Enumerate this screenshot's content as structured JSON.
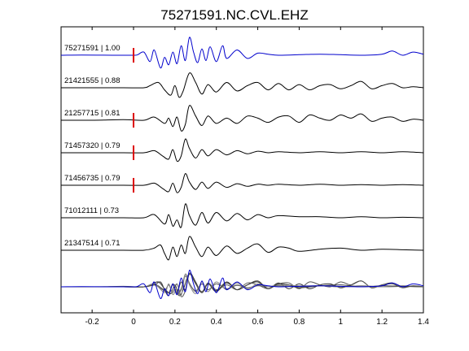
{
  "chart_data": {
    "type": "line",
    "title": "75271591.NC.CVL.EHZ",
    "xlabel": "",
    "ylabel": "",
    "xlim": [
      -0.35,
      1.4
    ],
    "xticks": [
      "-0.2",
      "0",
      "0.2",
      "0.4",
      "0.6",
      "0.8",
      "1",
      "1.2",
      "1.4"
    ],
    "grid": false,
    "trace_labels": [
      "75271591 | 1.00",
      "21421555 | 0.88",
      "21257715 | 0.81",
      "71457320 | 0.79",
      "71456735 | 0.79",
      "71012111 | 0.73",
      "21347514 | 0.71"
    ],
    "series": [
      {
        "id": "75271591",
        "corr": 1.0,
        "color": "#0000cc",
        "pick_time": 0.0,
        "x": [
          -0.35,
          -0.25,
          -0.1,
          0,
          0.02,
          0.05,
          0.08,
          0.1,
          0.13,
          0.15,
          0.17,
          0.19,
          0.21,
          0.23,
          0.25,
          0.27,
          0.29,
          0.31,
          0.33,
          0.35,
          0.37,
          0.4,
          0.43,
          0.45,
          0.5,
          0.55,
          0.6,
          0.65,
          0.7,
          0.8,
          0.9,
          1.0,
          1.1,
          1.2,
          1.25,
          1.3,
          1.35,
          1.4
        ],
        "y": [
          0,
          0.02,
          0,
          0,
          0.05,
          0.3,
          -0.6,
          0.5,
          -1.2,
          -0.2,
          -0.9,
          0.3,
          -0.8,
          0.9,
          -0.5,
          1.7,
          0.3,
          -0.7,
          0.6,
          -0.5,
          0.8,
          -0.6,
          0.9,
          -0.3,
          0.5,
          -0.3,
          0.2,
          0.1,
          0,
          0.05,
          0.1,
          0.05,
          0,
          0.1,
          0.4,
          0,
          0.3,
          0.1
        ]
      },
      {
        "id": "21421555",
        "corr": 0.88,
        "color": "#000000",
        "pick_time": null,
        "x": [
          -0.35,
          -0.2,
          -0.05,
          0.05,
          0.08,
          0.12,
          0.15,
          0.18,
          0.2,
          0.22,
          0.24,
          0.27,
          0.3,
          0.33,
          0.36,
          0.4,
          0.45,
          0.5,
          0.55,
          0.6,
          0.65,
          0.7,
          0.75,
          0.8,
          0.85,
          0.9,
          0.95,
          1.0,
          1.05,
          1.1,
          1.15,
          1.2,
          1.25,
          1.3,
          1.35,
          1.4
        ],
        "y": [
          0,
          0,
          0,
          0,
          0.2,
          0.5,
          -0.2,
          -0.7,
          0.2,
          -0.9,
          -0.3,
          1.4,
          0.5,
          -0.6,
          0.3,
          -0.4,
          0.5,
          -0.3,
          0.2,
          0.5,
          -0.2,
          0.4,
          -0.2,
          0.3,
          -0.2,
          0.2,
          0.3,
          -0.1,
          0.2,
          0.6,
          -0.1,
          0.2,
          0.4,
          0,
          0.1,
          0
        ]
      },
      {
        "id": "21257715",
        "corr": 0.81,
        "color": "#000000",
        "pick_time": 0.0,
        "x": [
          -0.35,
          -0.2,
          -0.05,
          0.05,
          0.1,
          0.15,
          0.17,
          0.19,
          0.21,
          0.23,
          0.25,
          0.27,
          0.3,
          0.33,
          0.36,
          0.4,
          0.45,
          0.5,
          0.55,
          0.6,
          0.65,
          0.7,
          0.75,
          0.8,
          0.85,
          0.9,
          0.95,
          1.0,
          1.05,
          1.1,
          1.15,
          1.2,
          1.25,
          1.3,
          1.35,
          1.4
        ],
        "y": [
          0,
          0,
          0.05,
          0,
          0.3,
          -0.3,
          0.2,
          -0.6,
          0.3,
          -1.0,
          -0.4,
          1.4,
          0.4,
          -0.5,
          0.4,
          -0.3,
          0.2,
          -0.3,
          0.4,
          0.2,
          -0.2,
          0.3,
          0.4,
          -0.2,
          0.5,
          0.2,
          0,
          0.5,
          0.2,
          0.6,
          -0.1,
          0.2,
          0.3,
          -0.1,
          0.1,
          0
        ]
      },
      {
        "id": "71457320",
        "corr": 0.79,
        "color": "#000000",
        "pick_time": 0.0,
        "x": [
          -0.35,
          -0.2,
          -0.05,
          0.05,
          0.1,
          0.14,
          0.17,
          0.19,
          0.21,
          0.23,
          0.25,
          0.27,
          0.3,
          0.33,
          0.36,
          0.4,
          0.45,
          0.5,
          0.55,
          0.6,
          0.65,
          0.7,
          0.8,
          0.9,
          1.0,
          1.1,
          1.2,
          1.3,
          1.4
        ],
        "y": [
          0,
          0,
          0,
          0,
          0.2,
          -0.3,
          -0.6,
          0.3,
          -0.8,
          -0.3,
          1.3,
          0.4,
          -0.5,
          0.3,
          -0.3,
          0.3,
          -0.2,
          0.2,
          -0.1,
          0.15,
          0,
          0.1,
          0,
          0.1,
          0,
          0.1,
          0,
          0.1,
          0
        ]
      },
      {
        "id": "71456735",
        "corr": 0.79,
        "color": "#000000",
        "pick_time": 0.0,
        "x": [
          -0.35,
          -0.2,
          -0.05,
          0.05,
          0.1,
          0.14,
          0.17,
          0.19,
          0.21,
          0.23,
          0.25,
          0.27,
          0.3,
          0.33,
          0.36,
          0.4,
          0.45,
          0.5,
          0.55,
          0.6,
          0.65,
          0.7,
          0.8,
          0.9,
          1.0,
          1.1,
          1.2,
          1.3,
          1.4
        ],
        "y": [
          0,
          0,
          0,
          0,
          0.2,
          -0.3,
          -0.6,
          0.2,
          -0.7,
          -0.2,
          1.1,
          0.3,
          -0.4,
          0.3,
          -0.3,
          0.3,
          -0.2,
          0.15,
          -0.1,
          0.1,
          0,
          0.1,
          0,
          0.1,
          0,
          0.05,
          0,
          0.05,
          0
        ]
      },
      {
        "id": "71012111",
        "corr": 0.73,
        "color": "#000000",
        "pick_time": null,
        "x": [
          -0.35,
          -0.2,
          -0.05,
          0.05,
          0.1,
          0.15,
          0.17,
          0.19,
          0.21,
          0.23,
          0.25,
          0.27,
          0.3,
          0.33,
          0.36,
          0.4,
          0.45,
          0.5,
          0.55,
          0.6,
          0.65,
          0.7,
          0.8,
          0.9,
          1.0,
          1.1,
          1.2,
          1.3,
          1.4
        ],
        "y": [
          0,
          0,
          0,
          0,
          0.3,
          -0.6,
          0.3,
          -0.8,
          -0.2,
          -0.9,
          1.3,
          0.2,
          -0.7,
          0.5,
          -0.5,
          0.5,
          -0.3,
          0.4,
          -0.2,
          0.3,
          0,
          0.2,
          0.1,
          0.1,
          0,
          0.1,
          0,
          0.05,
          0
        ]
      },
      {
        "id": "21347514",
        "corr": 0.71,
        "color": "#000000",
        "pick_time": null,
        "x": [
          -0.35,
          -0.2,
          -0.05,
          0.05,
          0.1,
          0.13,
          0.15,
          0.17,
          0.19,
          0.21,
          0.23,
          0.25,
          0.27,
          0.3,
          0.33,
          0.36,
          0.4,
          0.45,
          0.5,
          0.55,
          0.6,
          0.65,
          0.7,
          0.75,
          0.8,
          0.9,
          1.0,
          1.1,
          1.2,
          1.3,
          1.4
        ],
        "y": [
          0,
          0,
          0,
          0,
          0.2,
          0.5,
          -0.3,
          -0.9,
          0.3,
          -0.6,
          0.5,
          -0.3,
          1.3,
          0.3,
          -0.6,
          0.3,
          -0.5,
          0.4,
          -0.3,
          0.2,
          0.6,
          -0.2,
          0.3,
          0.2,
          -0.1,
          0.1,
          0.2,
          0,
          0.1,
          0.05,
          0
        ]
      }
    ],
    "stack_overlay": true
  }
}
